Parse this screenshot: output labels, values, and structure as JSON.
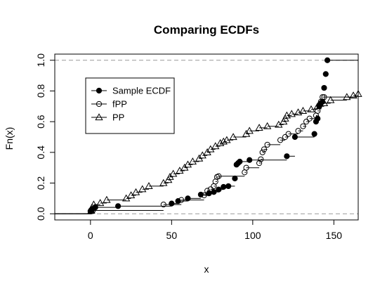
{
  "chart_data": {
    "type": "scatter",
    "title": "Comparing ECDFs",
    "xlabel": "x",
    "ylabel": "Fn(x)",
    "xlim": [
      -22,
      165
    ],
    "ylim": [
      -0.04,
      1.04
    ],
    "xticks": [
      0,
      50,
      100,
      150
    ],
    "yticks": [
      0.0,
      0.2,
      0.4,
      0.6,
      0.8,
      1.0
    ],
    "reference_lines_y": [
      0,
      1
    ],
    "legend_position": "top-left",
    "series": [
      {
        "name": "Sample ECDF",
        "marker": "filled-circle",
        "color": "#000000",
        "x": [
          0,
          0.5,
          1.5,
          3,
          17,
          50,
          54,
          60,
          68,
          73,
          76,
          79,
          82,
          85,
          89,
          90,
          91,
          92,
          98,
          121,
          126,
          138,
          139,
          140,
          141,
          142,
          143,
          144,
          145,
          146
        ],
        "y": [
          0.017,
          0.025,
          0.033,
          0.042,
          0.05,
          0.067,
          0.083,
          0.1,
          0.125,
          0.133,
          0.142,
          0.158,
          0.175,
          0.18,
          0.23,
          0.32,
          0.33,
          0.34,
          0.35,
          0.375,
          0.5,
          0.52,
          0.6,
          0.62,
          0.7,
          0.72,
          0.73,
          0.82,
          0.91,
          1.0
        ]
      },
      {
        "name": "fPP",
        "marker": "open-circle",
        "color": "#000000",
        "x": [
          0.5,
          1.5,
          45,
          56,
          70,
          72,
          74,
          76,
          77,
          78,
          79,
          95,
          96,
          104,
          105,
          106,
          107,
          109,
          117,
          120,
          122,
          128,
          131,
          133,
          135,
          139,
          140,
          141,
          142,
          143,
          144
        ],
        "y": [
          0.016,
          0.022,
          0.06,
          0.09,
          0.12,
          0.15,
          0.16,
          0.18,
          0.21,
          0.24,
          0.245,
          0.27,
          0.3,
          0.33,
          0.355,
          0.4,
          0.42,
          0.45,
          0.48,
          0.5,
          0.52,
          0.54,
          0.57,
          0.6,
          0.62,
          0.64,
          0.67,
          0.7,
          0.73,
          0.76,
          0.76
        ]
      },
      {
        "name": "PP",
        "marker": "open-triangle",
        "color": "#000000",
        "x": [
          0.5,
          1,
          2,
          6,
          10,
          22,
          25,
          28,
          32,
          36,
          45,
          48,
          49,
          51,
          55,
          58,
          60,
          63,
          67,
          69,
          72,
          74,
          77,
          80,
          82,
          84,
          88,
          96,
          98,
          104,
          109,
          116,
          119,
          120,
          121,
          124,
          128,
          131,
          136,
          140,
          144,
          148,
          158,
          162,
          165
        ],
        "y": [
          0.02,
          0.04,
          0.06,
          0.07,
          0.09,
          0.1,
          0.12,
          0.14,
          0.16,
          0.18,
          0.2,
          0.22,
          0.24,
          0.26,
          0.28,
          0.3,
          0.32,
          0.34,
          0.36,
          0.38,
          0.4,
          0.42,
          0.44,
          0.46,
          0.47,
          0.48,
          0.5,
          0.52,
          0.54,
          0.56,
          0.57,
          0.58,
          0.6,
          0.62,
          0.64,
          0.65,
          0.66,
          0.67,
          0.68,
          0.7,
          0.72,
          0.74,
          0.76,
          0.77,
          0.78
        ]
      }
    ]
  }
}
